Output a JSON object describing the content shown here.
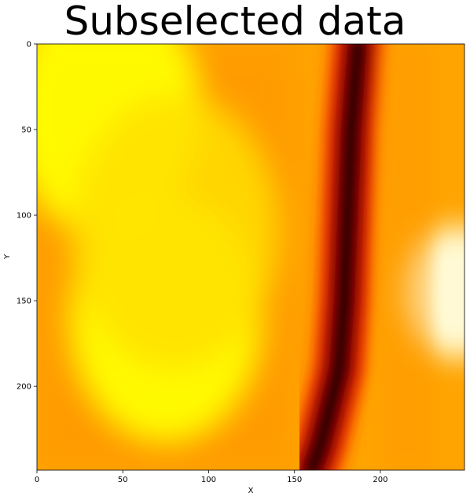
{
  "chart_data": {
    "type": "heatmap",
    "title": "Subselected data",
    "xlabel": "X",
    "ylabel": "Y",
    "xlim": [
      0,
      249
    ],
    "ylim": [
      249,
      0
    ],
    "x_ticks": [
      0,
      50,
      100,
      150,
      200
    ],
    "y_ticks": [
      0,
      50,
      100,
      150,
      200
    ],
    "colormap": "hot",
    "grid": false,
    "colors": {
      "low": "#0a0000",
      "mid_low": "#b40000",
      "mid": "#ff2a00",
      "mid_high": "#ff9600",
      "high": "#ffff00",
      "max": "#ffffe0"
    },
    "features": {
      "dark_channel_center_x": [
        [
          0,
          187
        ],
        [
          50,
          183
        ],
        [
          100,
          181
        ],
        [
          150,
          179
        ],
        [
          190,
          176
        ],
        [
          215,
          170
        ],
        [
          235,
          165
        ],
        [
          249,
          160
        ]
      ],
      "bright_patches": [
        {
          "x": 40,
          "y": 40,
          "level": 0.95
        },
        {
          "x": 75,
          "y": 160,
          "level": 0.97
        },
        {
          "x": 245,
          "y": 145,
          "level": 1.0
        }
      ]
    }
  }
}
